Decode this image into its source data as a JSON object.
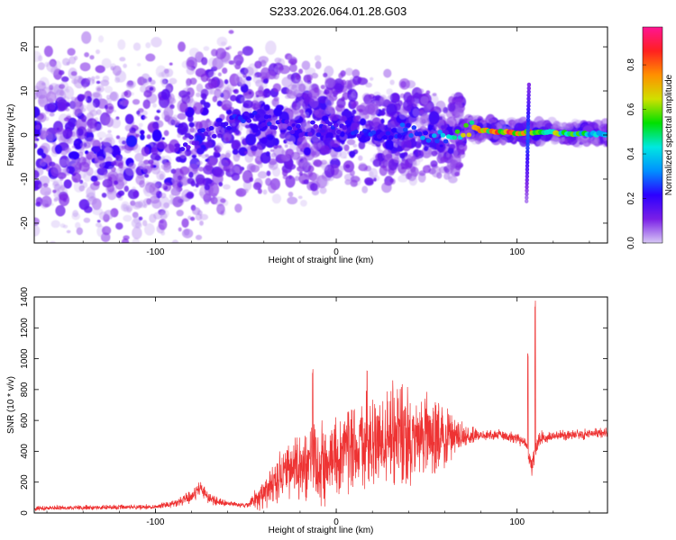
{
  "title": "S233.2026.064.01.28.G03",
  "chart_data": [
    {
      "type": "heatmap",
      "xlabel": "Height of straight line (km)",
      "ylabel": "Frequency (Hz)",
      "xlim": [
        -167,
        150
      ],
      "ylim": [
        -24.5,
        24.5
      ],
      "xticks": [
        -100,
        0,
        100
      ],
      "yticks": [
        -20,
        -10,
        0,
        10,
        20
      ],
      "colorbar": {
        "label": "Normalized spectral amplitude",
        "range": [
          0,
          0.97
        ],
        "ticks": [
          0.0,
          0.2,
          0.4,
          0.6,
          0.8
        ],
        "colors": [
          "#d7c8f5",
          "#7a1fe6",
          "#2c00ff",
          "#0090ff",
          "#00e8e0",
          "#00e000",
          "#d0e000",
          "#ff9000",
          "#ff2020",
          "#ff1493"
        ]
      },
      "ridge": {
        "x": [
          -85,
          -50,
          -20,
          0,
          20,
          40,
          60,
          75,
          90,
          105,
          125,
          150
        ],
        "frequency": [
          -2,
          4,
          1,
          2,
          0,
          1,
          -0.5,
          1.5,
          0.7,
          0.5,
          0.5,
          0.2
        ],
        "amplitude": [
          0.2,
          0.25,
          0.2,
          0.25,
          0.25,
          0.3,
          0.4,
          0.7,
          0.85,
          0.8,
          0.6,
          0.4
        ]
      }
    },
    {
      "type": "line",
      "xlabel": "Height of straight line (km)",
      "ylabel": "SNR (10 * v/v)",
      "xlim": [
        -167,
        150
      ],
      "ylim": [
        0,
        1400
      ],
      "xticks": [
        -100,
        0,
        100
      ],
      "yticks": [
        0,
        200,
        400,
        600,
        800,
        1000,
        1200,
        1400
      ],
      "color": "#ee3333",
      "envelope": {
        "x": [
          -167,
          -100,
          -90,
          -80,
          -75,
          -70,
          -60,
          -50,
          -40,
          -30,
          -20,
          -10,
          0,
          10,
          20,
          30,
          40,
          50,
          60,
          70,
          80,
          90,
          100,
          105,
          108,
          112,
          120,
          150
        ],
        "baseline": [
          30,
          40,
          60,
          100,
          170,
          90,
          60,
          50,
          120,
          250,
          300,
          320,
          380,
          420,
          460,
          480,
          500,
          500,
          480,
          500,
          500,
          510,
          480,
          450,
          300,
          480,
          500,
          520
        ],
        "spread": [
          20,
          20,
          30,
          60,
          60,
          40,
          20,
          20,
          120,
          200,
          250,
          330,
          300,
          350,
          380,
          400,
          380,
          350,
          250,
          100,
          40,
          40,
          40,
          50,
          80,
          60,
          40,
          40
        ]
      },
      "spikes": [
        {
          "x": -13,
          "y": 940
        },
        {
          "x": 17,
          "y": 980
        },
        {
          "x": 106,
          "y": 1090
        },
        {
          "x": 110,
          "y": 1400
        }
      ]
    }
  ]
}
